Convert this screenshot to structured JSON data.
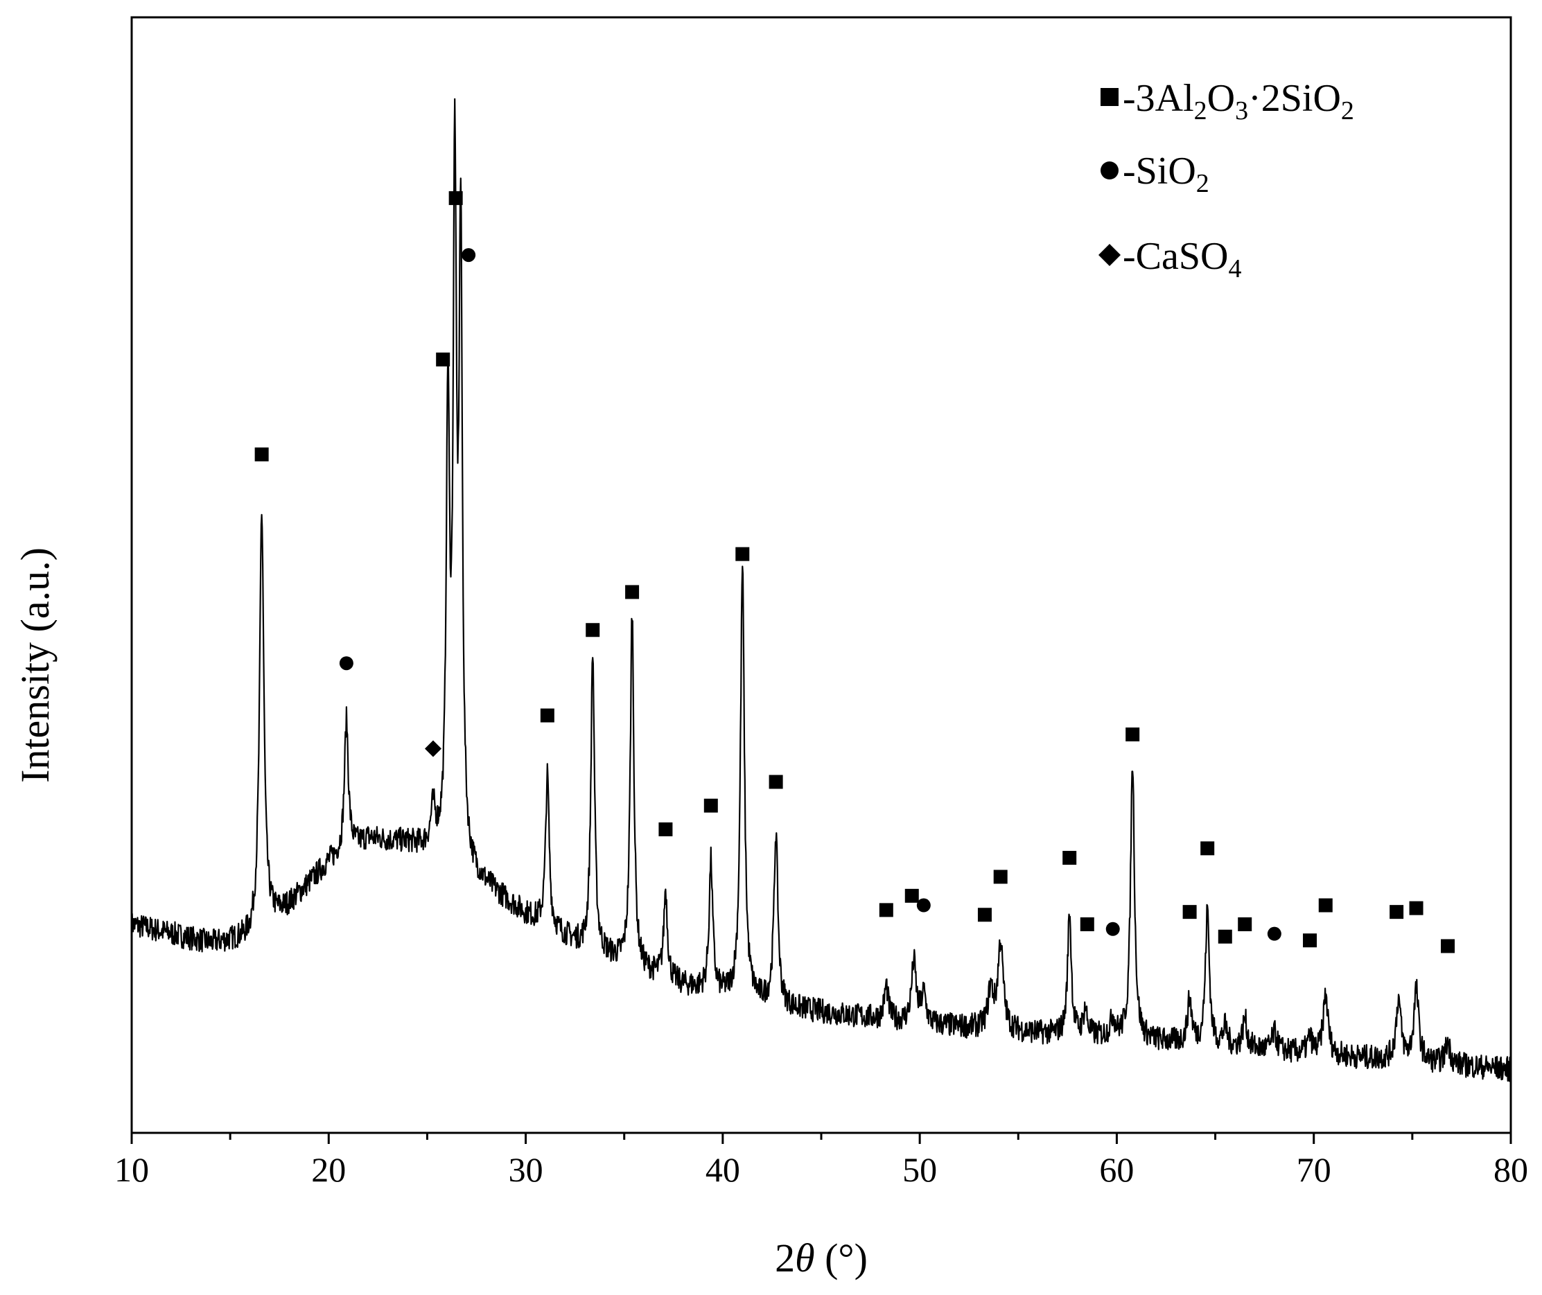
{
  "chart_data": {
    "type": "line",
    "title": "",
    "xlabel": "2θ (°)",
    "xlabel_prefix": "2",
    "xlabel_theta": "θ",
    "xlabel_suffix": " (°)",
    "ylabel": "Intensity (a.u.)",
    "xlim": [
      10,
      80
    ],
    "ylim": [
      0,
      100
    ],
    "y_ticks_shown": false,
    "grid": false,
    "legend_position": "top-right",
    "x_ticks": [
      10,
      20,
      30,
      40,
      50,
      60,
      70,
      80
    ],
    "x_tick_labels": [
      "10",
      "20",
      "30",
      "40",
      "50",
      "60",
      "70",
      "80"
    ],
    "legend": [
      {
        "marker": "square",
        "prefix": "-3Al",
        "sub1": "2",
        "mid1": "O",
        "sub2": "3",
        "mid2": "·2SiO",
        "sub3": "2"
      },
      {
        "marker": "circle",
        "prefix": "-SiO",
        "sub1": "2"
      },
      {
        "marker": "diamond",
        "prefix": "-CaSO",
        "sub1": "4"
      }
    ],
    "series": [
      {
        "color": "#000000",
        "baseline": [
          [
            10,
            16.5
          ],
          [
            14,
            14.5
          ],
          [
            16,
            15
          ],
          [
            18,
            18.5
          ],
          [
            20,
            23
          ],
          [
            22,
            25.5
          ],
          [
            24,
            25
          ],
          [
            25.5,
            24
          ],
          [
            27,
            22
          ],
          [
            30,
            17.5
          ],
          [
            33,
            14
          ],
          [
            36,
            11.5
          ],
          [
            38,
            10
          ],
          [
            40,
            9
          ],
          [
            44,
            7.5
          ],
          [
            50,
            6
          ],
          [
            56,
            5
          ],
          [
            60,
            4.5
          ],
          [
            66,
            3.5
          ],
          [
            72,
            2.5
          ],
          [
            80,
            1.2
          ]
        ],
        "peaks": [
          {
            "x": 16.6,
            "y": 60,
            "w": 0.13
          },
          {
            "x": 20.9,
            "y": 38,
            "w": 0.12
          },
          {
            "x": 25.3,
            "y": 28,
            "w": 0.14
          },
          {
            "x": 26.05,
            "y": 70,
            "w": 0.1
          },
          {
            "x": 26.4,
            "y": 93,
            "w": 0.1
          },
          {
            "x": 26.7,
            "y": 87,
            "w": 0.1
          },
          {
            "x": 31.1,
            "y": 32,
            "w": 0.11
          },
          {
            "x": 33.4,
            "y": 45,
            "w": 0.11
          },
          {
            "x": 35.4,
            "y": 49.5,
            "w": 0.11
          },
          {
            "x": 37.1,
            "y": 20,
            "w": 0.11
          },
          {
            "x": 39.4,
            "y": 23,
            "w": 0.11
          },
          {
            "x": 41.0,
            "y": 54,
            "w": 0.12
          },
          {
            "x": 42.7,
            "y": 26,
            "w": 0.12
          },
          {
            "x": 48.3,
            "y": 10,
            "w": 0.12
          },
          {
            "x": 49.7,
            "y": 12.5,
            "w": 0.14
          },
          {
            "x": 50.2,
            "y": 9,
            "w": 0.14
          },
          {
            "x": 53.6,
            "y": 9.5,
            "w": 0.16
          },
          {
            "x": 54.1,
            "y": 14.5,
            "w": 0.16
          },
          {
            "x": 57.6,
            "y": 18,
            "w": 0.11
          },
          {
            "x": 58.4,
            "y": 7.5,
            "w": 0.12
          },
          {
            "x": 59.8,
            "y": 6.5,
            "w": 0.14
          },
          {
            "x": 60.8,
            "y": 33.5,
            "w": 0.12
          },
          {
            "x": 63.7,
            "y": 8.5,
            "w": 0.13
          },
          {
            "x": 64.6,
            "y": 18,
            "w": 0.12
          },
          {
            "x": 65.5,
            "y": 5.5,
            "w": 0.13
          },
          {
            "x": 66.5,
            "y": 6.5,
            "w": 0.13
          },
          {
            "x": 68.0,
            "y": 5,
            "w": 0.15
          },
          {
            "x": 69.8,
            "y": 4.5,
            "w": 0.13
          },
          {
            "x": 70.6,
            "y": 9,
            "w": 0.15
          },
          {
            "x": 74.3,
            "y": 8.5,
            "w": 0.15
          },
          {
            "x": 75.2,
            "y": 9.5,
            "w": 0.15
          },
          {
            "x": 76.8,
            "y": 4,
            "w": 0.15
          }
        ]
      }
    ],
    "annotations": [
      {
        "marker": "square",
        "x": 16.6,
        "y": 66
      },
      {
        "marker": "circle",
        "x": 20.9,
        "y": 44
      },
      {
        "marker": "diamond",
        "x": 25.3,
        "y": 35
      },
      {
        "marker": "square",
        "x": 25.8,
        "y": 76
      },
      {
        "marker": "square",
        "x": 26.45,
        "y": 93
      },
      {
        "marker": "circle",
        "x": 27.1,
        "y": 87
      },
      {
        "marker": "square",
        "x": 31.1,
        "y": 38.5
      },
      {
        "marker": "square",
        "x": 33.4,
        "y": 47.5
      },
      {
        "marker": "square",
        "x": 35.4,
        "y": 51.5
      },
      {
        "marker": "square",
        "x": 37.1,
        "y": 26.5
      },
      {
        "marker": "square",
        "x": 39.4,
        "y": 29
      },
      {
        "marker": "square",
        "x": 41.0,
        "y": 55.5
      },
      {
        "marker": "square",
        "x": 42.7,
        "y": 31.5
      },
      {
        "marker": "square",
        "x": 48.3,
        "y": 18
      },
      {
        "marker": "square",
        "x": 49.6,
        "y": 19.5
      },
      {
        "marker": "circle",
        "x": 50.2,
        "y": 18.5
      },
      {
        "marker": "square",
        "x": 53.3,
        "y": 17.5
      },
      {
        "marker": "square",
        "x": 54.1,
        "y": 21.5
      },
      {
        "marker": "square",
        "x": 57.6,
        "y": 23.5
      },
      {
        "marker": "square",
        "x": 58.5,
        "y": 16.5
      },
      {
        "marker": "circle",
        "x": 59.8,
        "y": 16
      },
      {
        "marker": "square",
        "x": 60.8,
        "y": 36.5
      },
      {
        "marker": "square",
        "x": 63.7,
        "y": 17.8
      },
      {
        "marker": "square",
        "x": 64.6,
        "y": 24.5
      },
      {
        "marker": "square",
        "x": 65.5,
        "y": 15.2
      },
      {
        "marker": "square",
        "x": 66.5,
        "y": 16.5
      },
      {
        "marker": "circle",
        "x": 68.0,
        "y": 15.5
      },
      {
        "marker": "square",
        "x": 69.8,
        "y": 14.8
      },
      {
        "marker": "square",
        "x": 70.6,
        "y": 18.5
      },
      {
        "marker": "square",
        "x": 74.2,
        "y": 17.8
      },
      {
        "marker": "square",
        "x": 75.2,
        "y": 18.2
      },
      {
        "marker": "square",
        "x": 76.8,
        "y": 14.2
      }
    ]
  }
}
